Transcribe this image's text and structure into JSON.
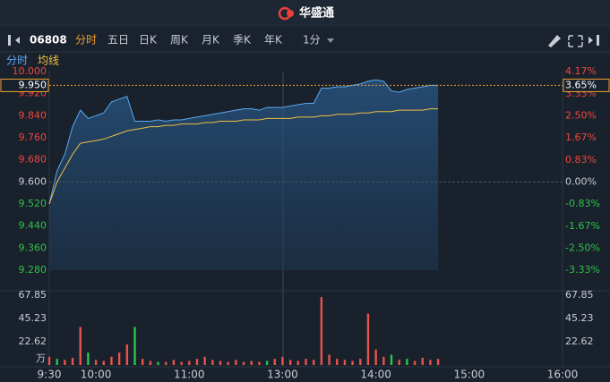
{
  "header": {
    "title": "华盛通"
  },
  "toolbar": {
    "code": "06808",
    "tabs": [
      "分时",
      "五日",
      "日K",
      "周K",
      "月K",
      "季K",
      "年K"
    ],
    "active": 0,
    "active_color": "#f0a030",
    "period": "1分"
  },
  "chart_data": [
    {
      "type": "line",
      "x": [
        "9:30",
        "9:35",
        "9:40",
        "9:45",
        "9:50",
        "9:55",
        "10:00",
        "10:05",
        "10:10",
        "10:15",
        "10:20",
        "10:25",
        "10:30",
        "10:35",
        "10:40",
        "10:45",
        "10:50",
        "10:55",
        "11:00",
        "11:05",
        "11:10",
        "11:15",
        "11:20",
        "11:25",
        "11:30",
        "11:35",
        "11:40",
        "11:45",
        "11:50",
        "11:55",
        "13:00",
        "13:05",
        "13:10",
        "13:15",
        "13:20",
        "13:25",
        "13:30",
        "13:35",
        "13:40",
        "13:45",
        "13:50",
        "13:55",
        "14:00",
        "14:05",
        "14:10",
        "14:15",
        "14:20",
        "14:25",
        "14:30",
        "14:35",
        "14:40"
      ],
      "series": [
        {
          "name": "分时",
          "color": "#5aa9f0",
          "values": [
            9.52,
            9.64,
            9.7,
            9.8,
            9.86,
            9.83,
            9.84,
            9.85,
            9.89,
            9.9,
            9.91,
            9.82,
            9.82,
            9.82,
            9.825,
            9.82,
            9.825,
            9.825,
            9.83,
            9.835,
            9.84,
            9.845,
            9.85,
            9.855,
            9.86,
            9.865,
            9.865,
            9.86,
            9.87,
            9.87,
            9.87,
            9.875,
            9.88,
            9.885,
            9.885,
            9.94,
            9.94,
            9.945,
            9.945,
            9.95,
            9.955,
            9.965,
            9.97,
            9.965,
            9.93,
            9.925,
            9.935,
            9.94,
            9.945,
            9.95,
            9.95
          ]
        },
        {
          "name": "均线",
          "color": "#f0c040",
          "values": [
            9.52,
            9.6,
            9.65,
            9.7,
            9.74,
            9.745,
            9.75,
            9.755,
            9.765,
            9.775,
            9.785,
            9.79,
            9.795,
            9.8,
            9.8,
            9.805,
            9.805,
            9.81,
            9.81,
            9.81,
            9.815,
            9.815,
            9.82,
            9.82,
            9.82,
            9.825,
            9.825,
            9.825,
            9.83,
            9.83,
            9.83,
            9.83,
            9.835,
            9.835,
            9.835,
            9.84,
            9.84,
            9.845,
            9.845,
            9.845,
            9.85,
            9.85,
            9.855,
            9.855,
            9.855,
            9.86,
            9.86,
            9.86,
            9.86,
            9.865,
            9.865
          ]
        }
      ],
      "ylim": [
        9.28,
        10.0
      ],
      "yticks": [
        {
          "value": 10.0,
          "label": "10.000"
        },
        {
          "value": 9.92,
          "label": "9.920"
        },
        {
          "value": 9.84,
          "label": "9.840"
        },
        {
          "value": 9.76,
          "label": "9.760"
        },
        {
          "value": 9.68,
          "label": "9.680"
        },
        {
          "value": 9.6,
          "label": "9.600"
        },
        {
          "value": 9.52,
          "label": "9.520"
        },
        {
          "value": 9.44,
          "label": "9.440"
        },
        {
          "value": 9.36,
          "label": "9.360"
        },
        {
          "value": 9.28,
          "label": "9.280"
        }
      ],
      "y2lim": [
        -3.33,
        4.17
      ],
      "y2ticks": [
        {
          "value": 4.17,
          "label": "4.17%"
        },
        {
          "value": 3.33,
          "label": "3.33%"
        },
        {
          "value": 2.5,
          "label": "2.50%"
        },
        {
          "value": 1.67,
          "label": "1.67%"
        },
        {
          "value": 0.83,
          "label": "0.83%"
        },
        {
          "value": 0,
          "label": "0.00%"
        },
        {
          "value": -0.83,
          "label": "-0.83%"
        },
        {
          "value": -1.67,
          "label": "-1.67%"
        },
        {
          "value": -2.5,
          "label": "-2.50%"
        },
        {
          "value": -3.33,
          "label": "-3.33%"
        }
      ],
      "up_color": "#f0463c",
      "down_color": "#2ec24a",
      "flat_color": "#c8ccd4",
      "last": {
        "value": 9.95,
        "label": "9.950"
      },
      "last_pct": {
        "value": 3.65,
        "label": "3.65%"
      },
      "last_color": "#f0a030"
    },
    {
      "type": "bar",
      "unit": "万",
      "values": [
        8,
        6,
        5,
        7,
        37,
        12,
        5,
        4,
        8,
        12,
        20,
        37,
        6,
        4,
        3,
        3,
        5,
        3,
        4,
        6,
        8,
        5,
        4,
        3,
        5,
        3,
        4,
        3,
        4,
        6,
        8,
        5,
        4,
        6,
        5,
        66,
        10,
        6,
        5,
        4,
        6,
        50,
        15,
        8,
        10,
        5,
        6,
        4,
        7,
        5,
        6
      ],
      "colors": [
        "#e8534b",
        "#2ec24a",
        "#e8534b",
        "#e8534b",
        "#e8534b",
        "#2ec24a",
        "#e8534b",
        "#e8534b",
        "#e8534b",
        "#e8534b",
        "#e8534b",
        "#2ec24a",
        "#e8534b",
        "#e8534b",
        "#2ec24a",
        "#e8534b",
        "#e8534b",
        "#e8534b",
        "#e8534b",
        "#e8534b",
        "#e8534b",
        "#e8534b",
        "#e8534b",
        "#e8534b",
        "#e8534b",
        "#e8534b",
        "#e8534b",
        "#e8534b",
        "#2ec24a",
        "#e8534b",
        "#e8534b",
        "#e8534b",
        "#e8534b",
        "#e8534b",
        "#e8534b",
        "#e8534b",
        "#e8534b",
        "#e8534b",
        "#e8534b",
        "#e8534b",
        "#e8534b",
        "#e8534b",
        "#e8534b",
        "#e8534b",
        "#2ec24a",
        "#e8534b",
        "#2ec24a",
        "#e8534b",
        "#e8534b",
        "#e8534b",
        "#e8534b"
      ],
      "ylim": [
        0,
        67.85
      ],
      "yticks": [
        22.62,
        45.23,
        67.85
      ],
      "xticks": [
        "9:30",
        "10:00",
        "11:00",
        "13:00",
        "14:00",
        "15:00",
        "16:00"
      ]
    }
  ]
}
